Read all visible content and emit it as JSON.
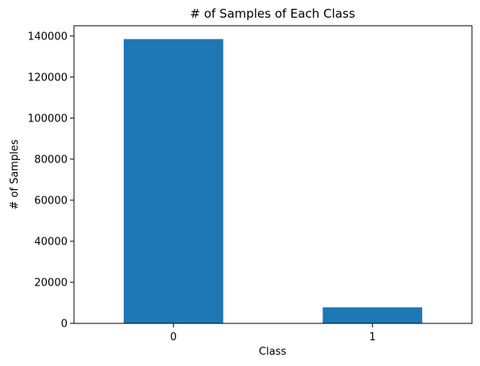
{
  "chart_data": {
    "type": "bar",
    "title": "# of Samples of Each Class",
    "xlabel": "Class",
    "ylabel": "# of Samples",
    "categories": [
      "0",
      "1"
    ],
    "values": [
      138500,
      7800
    ],
    "ylim": [
      0,
      145000
    ],
    "yticks": [
      0,
      20000,
      40000,
      60000,
      80000,
      100000,
      120000,
      140000
    ],
    "grid": false,
    "colors": {
      "bar": "#1f77b4"
    }
  }
}
